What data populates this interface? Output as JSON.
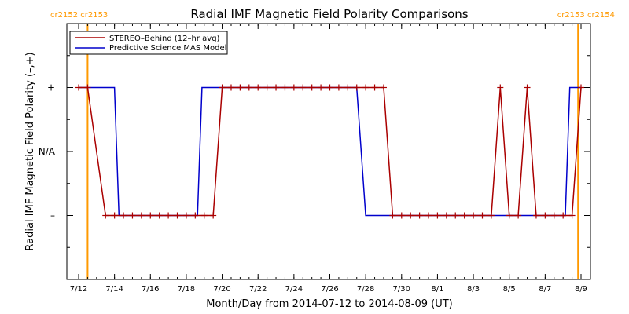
{
  "chart_data": {
    "type": "line",
    "title": "Radial IMF Magnetic Field Polarity Comparisons",
    "xlabel": "Month/Day from 2014-07-12 to 2014-08-09 (UT)",
    "ylabel": "Radial IMF Magnetic Field Polarity (–,+)",
    "x_range": [
      "2014-07-12",
      "2014-08-09"
    ],
    "x_unit": "date (UT)",
    "xtick_labels": [
      "7/12",
      "7/14",
      "7/16",
      "7/18",
      "7/20",
      "7/22",
      "7/24",
      "7/26",
      "7/28",
      "7/30",
      "8/1",
      "8/3",
      "8/5",
      "8/7",
      "8/9"
    ],
    "xtick_dates": [
      "2014-07-12",
      "2014-07-14",
      "2014-07-16",
      "2014-07-18",
      "2014-07-20",
      "2014-07-22",
      "2014-07-24",
      "2014-07-26",
      "2014-07-28",
      "2014-07-30",
      "2014-08-01",
      "2014-08-03",
      "2014-08-05",
      "2014-08-07",
      "2014-08-09"
    ],
    "y_categories": [
      "–",
      "N/A",
      "+"
    ],
    "y_values": [
      -1,
      0,
      1
    ],
    "ylim": [
      -2,
      2
    ],
    "grid": false,
    "legend_position": "top-left",
    "carrington_markers": [
      {
        "label": "cr2152 cr2153",
        "x": "2014-07-12 12:00",
        "side": "left"
      },
      {
        "label": "cr2153 cr2154",
        "x": "2014-08-08 20:00",
        "side": "right"
      }
    ],
    "series": [
      {
        "name": "STEREO–Behind (12–hr avg)",
        "color": "#aa0000",
        "marker": "plus",
        "points": [
          [
            "2014-07-12 00:00",
            1
          ],
          [
            "2014-07-12 12:00",
            1
          ],
          [
            "2014-07-13 12:00",
            -1
          ],
          [
            "2014-07-14 00:00",
            -1
          ],
          [
            "2014-07-14 12:00",
            -1
          ],
          [
            "2014-07-15 00:00",
            -1
          ],
          [
            "2014-07-15 12:00",
            -1
          ],
          [
            "2014-07-16 00:00",
            -1
          ],
          [
            "2014-07-16 12:00",
            -1
          ],
          [
            "2014-07-17 00:00",
            -1
          ],
          [
            "2014-07-17 12:00",
            -1
          ],
          [
            "2014-07-18 00:00",
            -1
          ],
          [
            "2014-07-18 12:00",
            -1
          ],
          [
            "2014-07-19 00:00",
            -1
          ],
          [
            "2014-07-19 12:00",
            -1
          ],
          [
            "2014-07-20 00:00",
            1
          ],
          [
            "2014-07-20 12:00",
            1
          ],
          [
            "2014-07-21 00:00",
            1
          ],
          [
            "2014-07-21 12:00",
            1
          ],
          [
            "2014-07-22 00:00",
            1
          ],
          [
            "2014-07-22 12:00",
            1
          ],
          [
            "2014-07-23 00:00",
            1
          ],
          [
            "2014-07-23 12:00",
            1
          ],
          [
            "2014-07-24 00:00",
            1
          ],
          [
            "2014-07-24 12:00",
            1
          ],
          [
            "2014-07-25 00:00",
            1
          ],
          [
            "2014-07-25 12:00",
            1
          ],
          [
            "2014-07-26 00:00",
            1
          ],
          [
            "2014-07-26 12:00",
            1
          ],
          [
            "2014-07-27 00:00",
            1
          ],
          [
            "2014-07-27 12:00",
            1
          ],
          [
            "2014-07-28 00:00",
            1
          ],
          [
            "2014-07-28 12:00",
            1
          ],
          [
            "2014-07-29 00:00",
            1
          ],
          [
            "2014-07-29 12:00",
            -1
          ],
          [
            "2014-07-30 00:00",
            -1
          ],
          [
            "2014-07-30 12:00",
            -1
          ],
          [
            "2014-07-31 00:00",
            -1
          ],
          [
            "2014-07-31 12:00",
            -1
          ],
          [
            "2014-08-01 00:00",
            -1
          ],
          [
            "2014-08-01 12:00",
            -1
          ],
          [
            "2014-08-02 00:00",
            -1
          ],
          [
            "2014-08-02 12:00",
            -1
          ],
          [
            "2014-08-03 00:00",
            -1
          ],
          [
            "2014-08-03 12:00",
            -1
          ],
          [
            "2014-08-04 00:00",
            -1
          ],
          [
            "2014-08-04 12:00",
            1
          ],
          [
            "2014-08-05 00:00",
            -1
          ],
          [
            "2014-08-05 12:00",
            -1
          ],
          [
            "2014-08-06 00:00",
            1
          ],
          [
            "2014-08-06 12:00",
            -1
          ],
          [
            "2014-08-07 00:00",
            -1
          ],
          [
            "2014-08-07 12:00",
            -1
          ],
          [
            "2014-08-08 00:00",
            -1
          ],
          [
            "2014-08-08 12:00",
            -1
          ],
          [
            "2014-08-09 00:00",
            1
          ]
        ]
      },
      {
        "name": "Predictive Science MAS Model",
        "color": "#0000cc",
        "marker": "none",
        "points": [
          [
            "2014-07-12 00:00",
            1
          ],
          [
            "2014-07-14 00:00",
            1
          ],
          [
            "2014-07-14 06:00",
            -1
          ],
          [
            "2014-07-18 15:00",
            -1
          ],
          [
            "2014-07-18 21:00",
            1
          ],
          [
            "2014-07-27 12:00",
            1
          ],
          [
            "2014-07-28 00:00",
            -1
          ],
          [
            "2014-08-08 03:00",
            -1
          ],
          [
            "2014-08-08 09:00",
            1
          ],
          [
            "2014-08-09 00:00",
            1
          ]
        ]
      }
    ]
  }
}
